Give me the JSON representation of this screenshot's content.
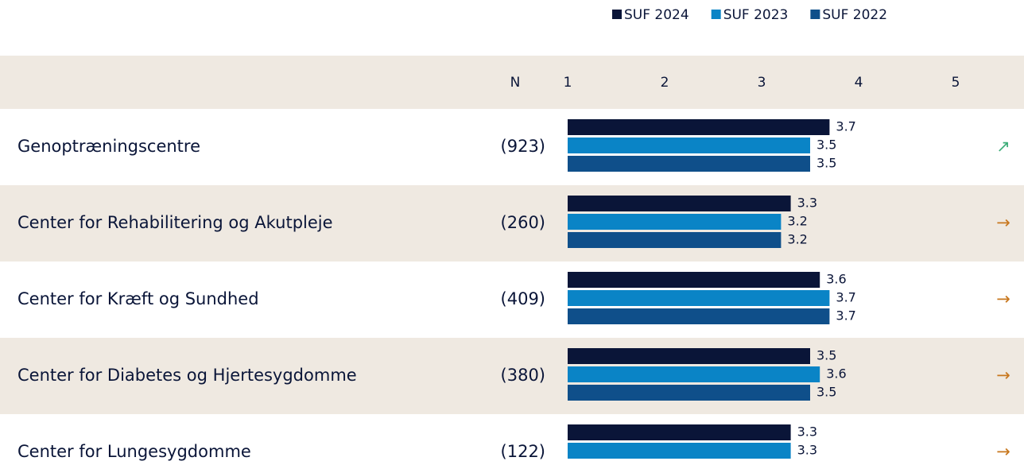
{
  "chart_data": {
    "type": "hbar",
    "n_header": "N",
    "categories": [
      "Genoptræningscentre",
      "Center for Rehabilitering og Akutpleje",
      "Center for Kræft og Sundhed",
      "Center for Diabetes og Hjertesygdomme",
      "Center for Lungesygdomme"
    ],
    "n": [
      "(923)",
      "(260)",
      "(409)",
      "(380)",
      "(122)"
    ],
    "trend": [
      "↗",
      "→",
      "→",
      "→",
      "→"
    ],
    "trend_colors": [
      "#3fae7a",
      "#c8771e",
      "#c8771e",
      "#c8771e",
      "#c8771e"
    ],
    "series": [
      {
        "name": "SUF 2024",
        "color": "#0a1538",
        "values": [
          3.7,
          3.3,
          3.6,
          3.5,
          3.3
        ]
      },
      {
        "name": "SUF 2023",
        "color": "#0a84c6",
        "values": [
          3.5,
          3.2,
          3.7,
          3.6,
          3.3
        ]
      },
      {
        "name": "SUF 2022",
        "color": "#0f4f8a",
        "values": [
          3.5,
          3.2,
          3.7,
          3.5,
          null
        ]
      }
    ],
    "xlim": [
      1,
      5
    ],
    "xticks": [
      1,
      2,
      3,
      4,
      5
    ]
  }
}
